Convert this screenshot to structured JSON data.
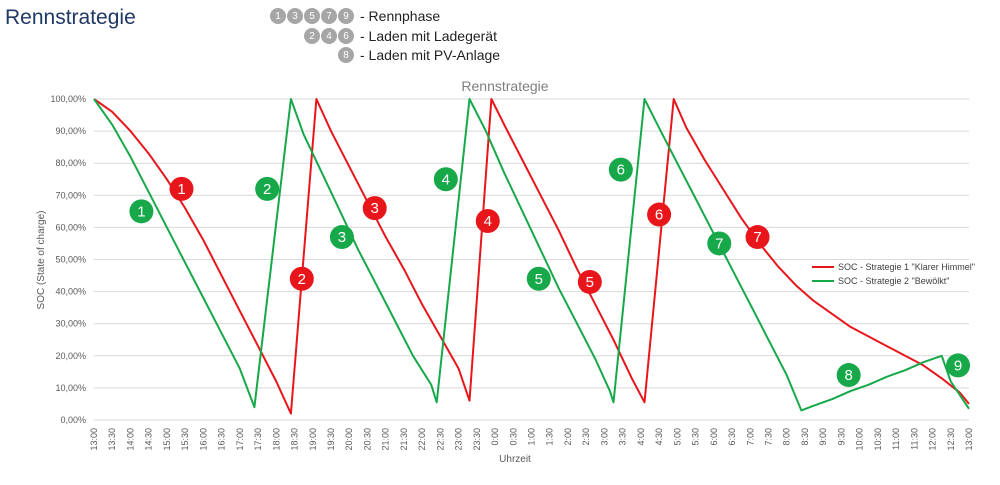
{
  "page_title": "Rennstrategie",
  "phase_key": [
    {
      "numbers": [
        "1",
        "3",
        "5",
        "7",
        "9"
      ],
      "label": "- Rennphase"
    },
    {
      "numbers": [
        "2",
        "4",
        "6"
      ],
      "label": "- Laden mit Ladegerät"
    },
    {
      "numbers": [
        "8"
      ],
      "label": "- Laden mit PV-Anlage"
    }
  ],
  "colors": {
    "strategy1": "#e8161b",
    "strategy2": "#17a84a",
    "key_circle": "#a6a6a6",
    "grid": "#d9d9d9"
  },
  "chart_data": {
    "type": "line",
    "title": "Rennstrategie",
    "xlabel": "Uhrzeit",
    "ylabel": "SOC (State of charge)",
    "ylim": [
      0,
      100
    ],
    "yticks": [
      0,
      10,
      20,
      30,
      40,
      50,
      60,
      70,
      80,
      90,
      100
    ],
    "ytick_labels": [
      "0,00%",
      "10,00%",
      "20,00%",
      "30,00%",
      "40,00%",
      "50,00%",
      "60,00%",
      "70,00%",
      "80,00%",
      "90,00%",
      "100,00%"
    ],
    "x_categories": [
      "13:00",
      "13:30",
      "14:00",
      "14:30",
      "15:00",
      "15:30",
      "16:00",
      "16:30",
      "17:00",
      "17:30",
      "18:00",
      "18:30",
      "19:00",
      "19:30",
      "20:00",
      "20:30",
      "21:00",
      "21:30",
      "22:00",
      "22:30",
      "23:00",
      "23:30",
      "0:00",
      "0:30",
      "1:00",
      "1:30",
      "2:00",
      "2:30",
      "3:00",
      "3:30",
      "4:00",
      "4:30",
      "5:00",
      "5:30",
      "6:00",
      "6:30",
      "7:00",
      "7:30",
      "8:00",
      "8:30",
      "9:00",
      "9:30",
      "10:00",
      "10:30",
      "11:00",
      "11:30",
      "12:00",
      "12:30",
      "13:00"
    ],
    "grid": true,
    "legend_position": "right",
    "series": [
      {
        "name": "SOC - Strategie 1 \"Klarer Himmel\"",
        "color": "#e8161b",
        "points": [
          [
            0,
            100
          ],
          [
            1,
            96
          ],
          [
            2,
            90
          ],
          [
            3,
            83
          ],
          [
            4,
            75
          ],
          [
            5,
            66
          ],
          [
            6,
            56
          ],
          [
            7,
            45
          ],
          [
            8,
            34
          ],
          [
            9,
            23
          ],
          [
            10,
            12
          ],
          [
            10.8,
            2
          ],
          [
            12.2,
            100
          ],
          [
            13,
            90
          ],
          [
            14,
            79
          ],
          [
            15,
            68
          ],
          [
            16,
            57
          ],
          [
            17,
            47
          ],
          [
            18,
            36
          ],
          [
            19,
            26
          ],
          [
            20,
            16
          ],
          [
            20.6,
            6
          ],
          [
            21.8,
            100
          ],
          [
            22.5,
            92
          ],
          [
            23.5,
            81
          ],
          [
            24.5,
            70
          ],
          [
            25.5,
            59
          ],
          [
            26.5,
            47
          ],
          [
            27.5,
            36
          ],
          [
            28.5,
            25
          ],
          [
            29.5,
            13
          ],
          [
            30.2,
            5.5
          ],
          [
            31.8,
            100
          ],
          [
            32.5,
            91
          ],
          [
            33.5,
            81
          ],
          [
            34.5,
            72
          ],
          [
            35.5,
            63
          ],
          [
            36.5,
            55
          ],
          [
            37.5,
            48
          ],
          [
            38.5,
            42
          ],
          [
            39.5,
            37
          ],
          [
            40.5,
            33
          ],
          [
            41.5,
            29
          ],
          [
            42.5,
            26
          ],
          [
            43.5,
            23
          ],
          [
            44.5,
            20
          ],
          [
            45.5,
            17
          ],
          [
            46.5,
            13
          ],
          [
            47.5,
            8.5
          ],
          [
            48,
            5
          ]
        ]
      },
      {
        "name": "SOC - Strategie 2 \"Bewölkt\"",
        "color": "#17a84a",
        "points": [
          [
            0,
            100
          ],
          [
            1,
            92
          ],
          [
            2,
            82
          ],
          [
            3,
            71
          ],
          [
            4,
            60
          ],
          [
            5,
            49
          ],
          [
            6,
            38
          ],
          [
            7,
            27
          ],
          [
            8,
            16
          ],
          [
            8.8,
            4
          ],
          [
            10.8,
            100
          ],
          [
            11.5,
            89
          ],
          [
            12.5,
            77
          ],
          [
            13.5,
            65
          ],
          [
            14.5,
            53
          ],
          [
            15.5,
            42
          ],
          [
            16.5,
            31
          ],
          [
            17.5,
            20
          ],
          [
            18.5,
            11
          ],
          [
            18.8,
            5.5
          ],
          [
            20.6,
            100
          ],
          [
            21.5,
            90
          ],
          [
            22.5,
            77
          ],
          [
            23.5,
            65
          ],
          [
            24.5,
            53
          ],
          [
            25.5,
            41
          ],
          [
            26.5,
            30
          ],
          [
            27.5,
            19
          ],
          [
            28.3,
            9
          ],
          [
            28.5,
            5.5
          ],
          [
            30.2,
            100
          ],
          [
            31,
            91
          ],
          [
            32,
            80
          ],
          [
            33,
            69
          ],
          [
            34,
            58
          ],
          [
            35,
            47
          ],
          [
            36,
            36
          ],
          [
            37,
            25
          ],
          [
            38,
            14
          ],
          [
            38.8,
            3
          ],
          [
            39.5,
            4.5
          ],
          [
            40.5,
            6.5
          ],
          [
            41.5,
            9
          ],
          [
            42.5,
            11
          ],
          [
            43.5,
            13.5
          ],
          [
            44.5,
            15.5
          ],
          [
            45.5,
            18
          ],
          [
            46.5,
            20
          ],
          [
            47,
            12
          ],
          [
            48,
            3.5
          ]
        ]
      }
    ],
    "markers": [
      {
        "label": "1",
        "series": "strategy1",
        "x": 4.8,
        "y": 72
      },
      {
        "label": "1",
        "series": "strategy2",
        "x": 2.6,
        "y": 65
      },
      {
        "label": "2",
        "series": "strategy2",
        "x": 9.5,
        "y": 72
      },
      {
        "label": "2",
        "series": "strategy1",
        "x": 11.4,
        "y": 44
      },
      {
        "label": "3",
        "series": "strategy1",
        "x": 15.4,
        "y": 66
      },
      {
        "label": "3",
        "series": "strategy2",
        "x": 13.6,
        "y": 57
      },
      {
        "label": "4",
        "series": "strategy2",
        "x": 19.3,
        "y": 75
      },
      {
        "label": "4",
        "series": "strategy1",
        "x": 21.6,
        "y": 62
      },
      {
        "label": "5",
        "series": "strategy2",
        "x": 24.4,
        "y": 44
      },
      {
        "label": "5",
        "series": "strategy1",
        "x": 27.2,
        "y": 43
      },
      {
        "label": "6",
        "series": "strategy2",
        "x": 28.9,
        "y": 78
      },
      {
        "label": "6",
        "series": "strategy1",
        "x": 31.0,
        "y": 64
      },
      {
        "label": "7",
        "series": "strategy2",
        "x": 34.3,
        "y": 55
      },
      {
        "label": "7",
        "series": "strategy1",
        "x": 36.4,
        "y": 57
      },
      {
        "label": "8",
        "series": "strategy2",
        "x": 41.4,
        "y": 14
      },
      {
        "label": "9",
        "series": "strategy2",
        "x": 47.4,
        "y": 17
      }
    ]
  }
}
